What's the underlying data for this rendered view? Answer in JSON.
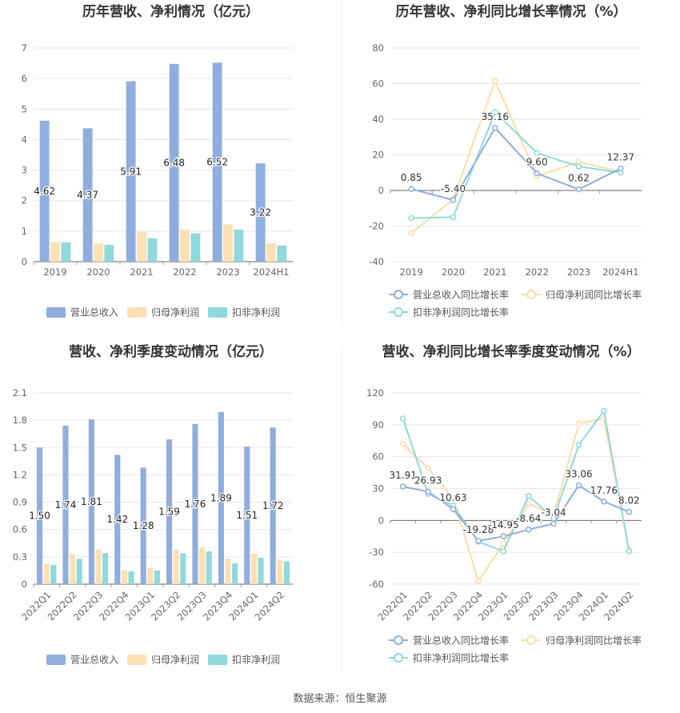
{
  "source": "数据来源：恒生聚源",
  "chart_data": [
    {
      "type": "bar",
      "title": "历年营收、净利情况（亿元）",
      "categories": [
        "2019",
        "2020",
        "2021",
        "2022",
        "2023",
        "2024H1"
      ],
      "ylim": [
        0,
        7
      ],
      "yticks": [
        0,
        1,
        2,
        3,
        4,
        5,
        6,
        7
      ],
      "series": [
        {
          "name": "营业总收入",
          "color": "#8faedd",
          "values": [
            4.62,
            4.37,
            5.91,
            6.48,
            6.52,
            3.22
          ],
          "labels": [
            "4.62",
            "4.37",
            "5.91",
            "6.48",
            "6.52",
            "3.22"
          ]
        },
        {
          "name": "归母净利润",
          "color": "#fde0b3",
          "values": [
            0.64,
            0.6,
            0.98,
            1.05,
            1.22,
            0.6
          ]
        },
        {
          "name": "扣非净利润",
          "color": "#8fd9dc",
          "values": [
            0.63,
            0.55,
            0.77,
            0.93,
            1.05,
            0.53
          ]
        }
      ],
      "grid": true,
      "legend": "bottom"
    },
    {
      "type": "line",
      "title": "历年营收、净利同比增长率情况（%）",
      "categories": [
        "2019",
        "2020",
        "2021",
        "2022",
        "2023",
        "2024H1"
      ],
      "ylim": [
        -40,
        80
      ],
      "yticks": [
        -40,
        -20,
        0,
        20,
        40,
        60,
        80
      ],
      "series": [
        {
          "name": "营业总收入同比增长率",
          "color": "#8faedd",
          "values": [
            0.85,
            -5.4,
            35.16,
            9.6,
            0.62,
            12.37
          ],
          "labels": [
            "0.85",
            "-5.40",
            "35.16",
            "9.60",
            "0.62",
            "12.37"
          ]
        },
        {
          "name": "归母净利润同比增长率",
          "color": "#fddca6",
          "values": [
            -24.0,
            -5.0,
            61.5,
            8.0,
            16.0,
            10.5
          ]
        },
        {
          "name": "扣非净利润同比增长率",
          "color": "#8fd9dc",
          "values": [
            -15.5,
            -15.0,
            44.0,
            21.0,
            13.5,
            10.0
          ]
        }
      ],
      "grid": true,
      "legend": "bottom"
    },
    {
      "type": "bar",
      "title": "营收、净利季度变动情况（亿元）",
      "categories": [
        "2022Q1",
        "2022Q2",
        "2022Q3",
        "2022Q4",
        "2023Q1",
        "2023Q2",
        "2023Q3",
        "2023Q4",
        "2024Q1",
        "2024Q2"
      ],
      "ylim": [
        0,
        2.1
      ],
      "yticks": [
        "0",
        "0.3",
        "0.6",
        "0.9",
        "1.2",
        "1.5",
        "1.8",
        "2.1"
      ],
      "series": [
        {
          "name": "营业总收入",
          "color": "#8faedd",
          "values": [
            1.5,
            1.74,
            1.81,
            1.42,
            1.28,
            1.59,
            1.76,
            1.89,
            1.51,
            1.72
          ],
          "labels": [
            "1.50",
            "1.74",
            "1.81",
            "1.42",
            "1.28",
            "1.59",
            "1.76",
            "1.89",
            "1.51",
            "1.72"
          ]
        },
        {
          "name": "归母净利润",
          "color": "#fde0b3",
          "values": [
            0.22,
            0.33,
            0.38,
            0.15,
            0.18,
            0.38,
            0.4,
            0.28,
            0.34,
            0.27
          ]
        },
        {
          "name": "扣非净利润",
          "color": "#8fd9dc",
          "values": [
            0.21,
            0.28,
            0.34,
            0.14,
            0.15,
            0.34,
            0.36,
            0.23,
            0.29,
            0.25
          ]
        }
      ],
      "grid": true,
      "legend": "bottom"
    },
    {
      "type": "line",
      "title": "营收、净利同比增长率季度变动情况（%）",
      "categories": [
        "2022Q1",
        "2022Q2",
        "2022Q3",
        "2022Q4",
        "2023Q1",
        "2023Q2",
        "2023Q3",
        "2023Q4",
        "2024Q1",
        "2024Q2"
      ],
      "ylim": [
        -60,
        120
      ],
      "yticks": [
        -60,
        -30,
        0,
        30,
        60,
        90,
        120
      ],
      "series": [
        {
          "name": "营业总收入同比增长率",
          "color": "#8faedd",
          "values": [
            31.91,
            26.93,
            10.63,
            -19.28,
            -14.95,
            -8.64,
            -3.04,
            33.06,
            17.76,
            8.02
          ],
          "labels": [
            "31.91",
            "26.93",
            "10.63",
            "-19.28",
            "-14.95",
            "-8.64",
            "-3.04",
            "33.06",
            "17.76",
            "8.02"
          ]
        },
        {
          "name": "归母净利润同比增长率",
          "color": "#fddca6",
          "values": [
            72.0,
            49.0,
            21.0,
            -57.0,
            -22.0,
            16.0,
            5.0,
            91.0,
            96.0,
            -28.0
          ]
        },
        {
          "name": "扣非净利润同比增长率",
          "color": "#8fd9dc",
          "values": [
            96.0,
            25.0,
            14.0,
            -20.0,
            -29.0,
            23.0,
            2.0,
            71.0,
            103.0,
            -29.0
          ]
        }
      ],
      "grid": true,
      "legend": "bottom"
    }
  ]
}
